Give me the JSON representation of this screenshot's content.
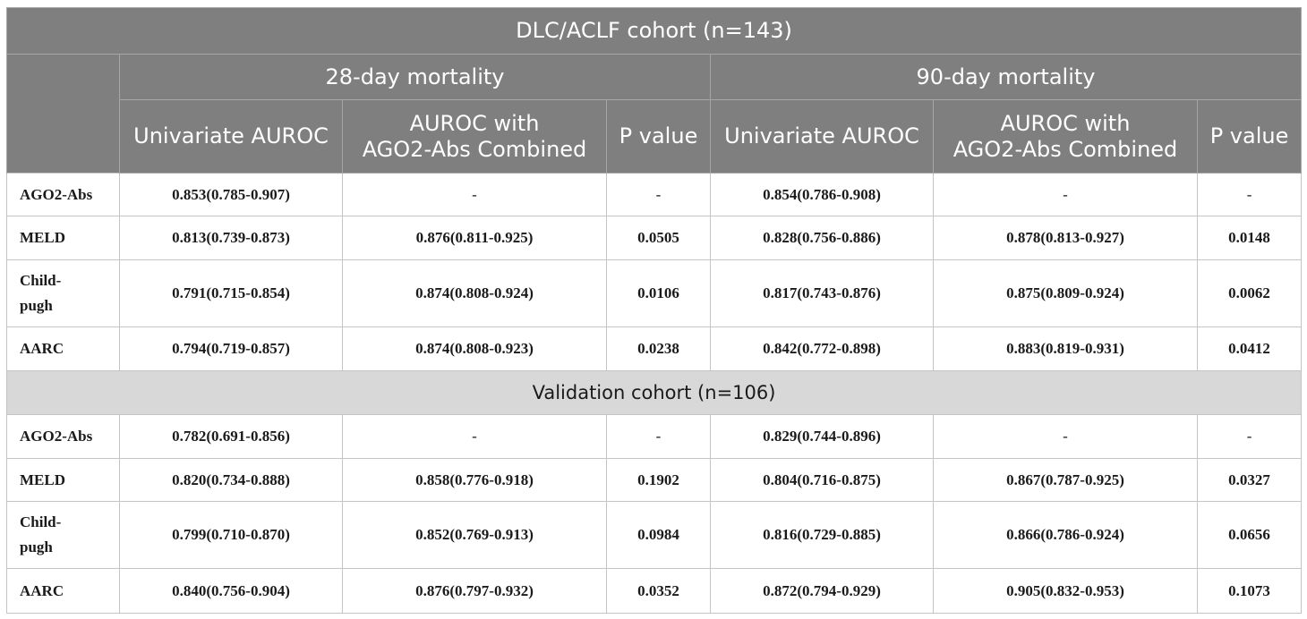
{
  "table": {
    "title": "DLC/ACLF cohort (n=143)",
    "groups": [
      "28-day mortality",
      "90-day mortality"
    ],
    "subheaders": {
      "univariate": "Univariate AUROC",
      "combined_line1": "AUROC with",
      "combined_line2": "AGO2-Abs Combined",
      "pvalue": "P value"
    },
    "cohort1_rows": [
      {
        "label": "AGO2-Abs",
        "c": [
          "0.853(0.785-0.907)",
          "-",
          "-",
          "0.854(0.786-0.908)",
          "-",
          "-"
        ]
      },
      {
        "label": "MELD",
        "c": [
          "0.813(0.739-0.873)",
          "0.876(0.811-0.925)",
          "0.0505",
          "0.828(0.756-0.886)",
          "0.878(0.813-0.927)",
          "0.0148"
        ]
      },
      {
        "label_line1": "Child-",
        "label_line2": "pugh",
        "c": [
          "0.791(0.715-0.854)",
          "0.874(0.808-0.924)",
          "0.0106",
          "0.817(0.743-0.876)",
          "0.875(0.809-0.924)",
          "0.0062"
        ]
      },
      {
        "label": "AARC",
        "c": [
          "0.794(0.719-0.857)",
          "0.874(0.808-0.923)",
          "0.0238",
          "0.842(0.772-0.898)",
          "0.883(0.819-0.931)",
          "0.0412"
        ]
      }
    ],
    "validation_title": "Validation cohort (n=106)",
    "cohort2_rows": [
      {
        "label": "AGO2-Abs",
        "c": [
          "0.782(0.691-0.856)",
          "-",
          "-",
          "0.829(0.744-0.896)",
          "-",
          "-"
        ]
      },
      {
        "label": "MELD",
        "c": [
          "0.820(0.734-0.888)",
          "0.858(0.776-0.918)",
          "0.1902",
          "0.804(0.716-0.875)",
          "0.867(0.787-0.925)",
          "0.0327"
        ]
      },
      {
        "label_line1": "Child-",
        "label_line2": "pugh",
        "c": [
          "0.799(0.710-0.870)",
          "0.852(0.769-0.913)",
          "0.0984",
          "0.816(0.729-0.885)",
          "0.866(0.786-0.924)",
          "0.0656"
        ]
      },
      {
        "label": "AARC",
        "c": [
          "0.840(0.756-0.904)",
          "0.876(0.797-0.932)",
          "0.0352",
          "0.872(0.794-0.929)",
          "0.905(0.832-0.953)",
          "0.1073"
        ]
      }
    ]
  }
}
